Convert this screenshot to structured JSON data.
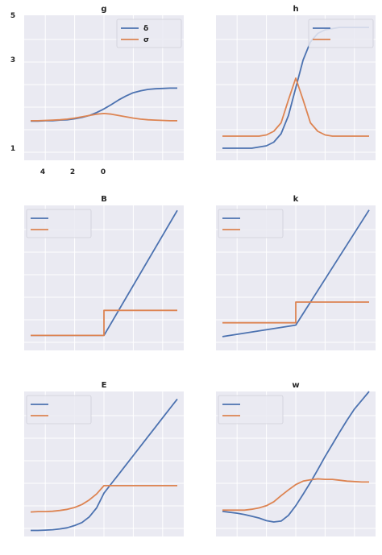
{
  "colors": {
    "panel_bg": "#eaeaf2",
    "grid": "#ffffff",
    "series_a": "#4c72b0",
    "series_b": "#dd8452"
  },
  "chart_data": [
    {
      "type": "line",
      "title": "g",
      "x": [
        -5,
        -4.5,
        -4,
        -3.5,
        -3,
        -2.5,
        -2,
        -1.5,
        -1,
        -0.5,
        0,
        0.5,
        1,
        1.5,
        2,
        2.5,
        3,
        3.5,
        4,
        4.5,
        5
      ],
      "ylim": [
        0.8,
        5.2
      ],
      "ytick_labels": [
        "1",
        "3",
        "5"
      ],
      "xtick_labels": [
        "4",
        "2",
        "0"
      ],
      "legend": {
        "placement": "top-right",
        "labels": [
          "δ",
          "σ"
        ]
      },
      "series": [
        {
          "values": [
            1.99,
            1.99,
            2.0,
            2.0,
            2.02,
            2.03,
            2.06,
            2.1,
            2.16,
            2.25,
            2.36,
            2.49,
            2.63,
            2.75,
            2.85,
            2.91,
            2.95,
            2.97,
            2.98,
            2.99,
            2.99
          ]
        },
        {
          "values": [
            2.0,
            2.0,
            2.01,
            2.02,
            2.03,
            2.05,
            2.08,
            2.12,
            2.16,
            2.2,
            2.22,
            2.2,
            2.16,
            2.12,
            2.08,
            2.05,
            2.03,
            2.02,
            2.01,
            2.0,
            2.0
          ]
        }
      ]
    },
    {
      "type": "line",
      "title": "h",
      "x": [
        -5,
        -4.5,
        -4,
        -3.5,
        -3,
        -2.5,
        -2,
        -1.5,
        -1,
        -0.5,
        0,
        0.5,
        1,
        1.5,
        2,
        2.5,
        3,
        3.5,
        4,
        4.5,
        5
      ],
      "ylim": [
        -0.1,
        1.1
      ],
      "legend": {
        "placement": "top-right",
        "labels": [
          "",
          ""
        ]
      },
      "series": [
        {
          "values": [
            0.0,
            0.0,
            0.0,
            0.0,
            0.0,
            0.01,
            0.02,
            0.05,
            0.12,
            0.27,
            0.5,
            0.73,
            0.88,
            0.95,
            0.98,
            0.99,
            1.0,
            1.0,
            1.0,
            1.0,
            1.0
          ]
        },
        {
          "values": [
            0.1,
            0.1,
            0.1,
            0.1,
            0.1,
            0.1,
            0.11,
            0.14,
            0.21,
            0.4,
            0.58,
            0.4,
            0.21,
            0.14,
            0.11,
            0.1,
            0.1,
            0.1,
            0.1,
            0.1,
            0.1
          ]
        }
      ]
    },
    {
      "type": "line",
      "title": "B",
      "x": [
        -5,
        0,
        0,
        5
      ],
      "ylim": [
        -0.3,
        2.6
      ],
      "legend": {
        "placement": "top-left",
        "labels": [
          "",
          ""
        ]
      },
      "series": [
        {
          "values": [
            0.0,
            0.0,
            0.0,
            2.5
          ]
        },
        {
          "values": [
            0.0,
            0.0,
            0.5,
            0.5
          ]
        }
      ]
    },
    {
      "type": "line",
      "title": "k",
      "x": [
        -5,
        0,
        0,
        5
      ],
      "ylim": [
        -0.55,
        2.6
      ],
      "legend": {
        "placement": "top-left",
        "labels": [
          "",
          ""
        ]
      },
      "series": [
        {
          "values": [
            -0.25,
            0.0,
            0.0,
            2.5
          ]
        },
        {
          "values": [
            0.05,
            0.05,
            0.5,
            0.5
          ]
        }
      ]
    },
    {
      "type": "line",
      "title": "E",
      "x": [
        -5,
        -4.5,
        -4,
        -3.5,
        -3,
        -2.5,
        -2,
        -1.5,
        -1,
        -0.5,
        0,
        0.5,
        1,
        1.5,
        2,
        2.5,
        3,
        3.5,
        4,
        4.5,
        5
      ],
      "ylim": [
        -1.15,
        2.7
      ],
      "legend": {
        "placement": "top-left",
        "labels": [
          "",
          ""
        ]
      },
      "series": [
        {
          "values": [
            -0.99,
            -0.99,
            -0.98,
            -0.97,
            -0.95,
            -0.92,
            -0.86,
            -0.78,
            -0.63,
            -0.39,
            0.0,
            0.25,
            0.5,
            0.75,
            1.0,
            1.25,
            1.5,
            1.75,
            2.0,
            2.25,
            2.5
          ]
        },
        {
          "values": [
            -0.5,
            -0.49,
            -0.49,
            -0.48,
            -0.46,
            -0.43,
            -0.38,
            -0.3,
            -0.18,
            -0.02,
            0.2,
            0.2,
            0.2,
            0.2,
            0.2,
            0.2,
            0.2,
            0.2,
            0.2,
            0.2,
            0.2
          ]
        }
      ]
    },
    {
      "type": "line",
      "title": "w",
      "x": [
        -5,
        -4.5,
        -4,
        -3.5,
        -3,
        -2.5,
        -2,
        -1.5,
        -1,
        -0.5,
        0,
        0.5,
        1,
        1.5,
        2,
        2.5,
        3,
        3.5,
        4,
        4.5,
        5
      ],
      "ylim": [
        -0.6,
        2.7
      ],
      "legend": {
        "placement": "top-left",
        "labels": [
          "",
          ""
        ]
      },
      "series": [
        {
          "values": [
            -0.03,
            -0.05,
            -0.07,
            -0.1,
            -0.14,
            -0.18,
            -0.24,
            -0.27,
            -0.25,
            -0.12,
            0.1,
            0.36,
            0.63,
            0.92,
            1.22,
            1.5,
            1.78,
            2.05,
            2.3,
            2.5,
            2.7
          ]
        },
        {
          "values": [
            0.0,
            0.0,
            0.0,
            0.0,
            0.02,
            0.05,
            0.1,
            0.19,
            0.33,
            0.46,
            0.58,
            0.66,
            0.69,
            0.71,
            0.7,
            0.7,
            0.68,
            0.66,
            0.65,
            0.64,
            0.64
          ]
        }
      ]
    }
  ]
}
